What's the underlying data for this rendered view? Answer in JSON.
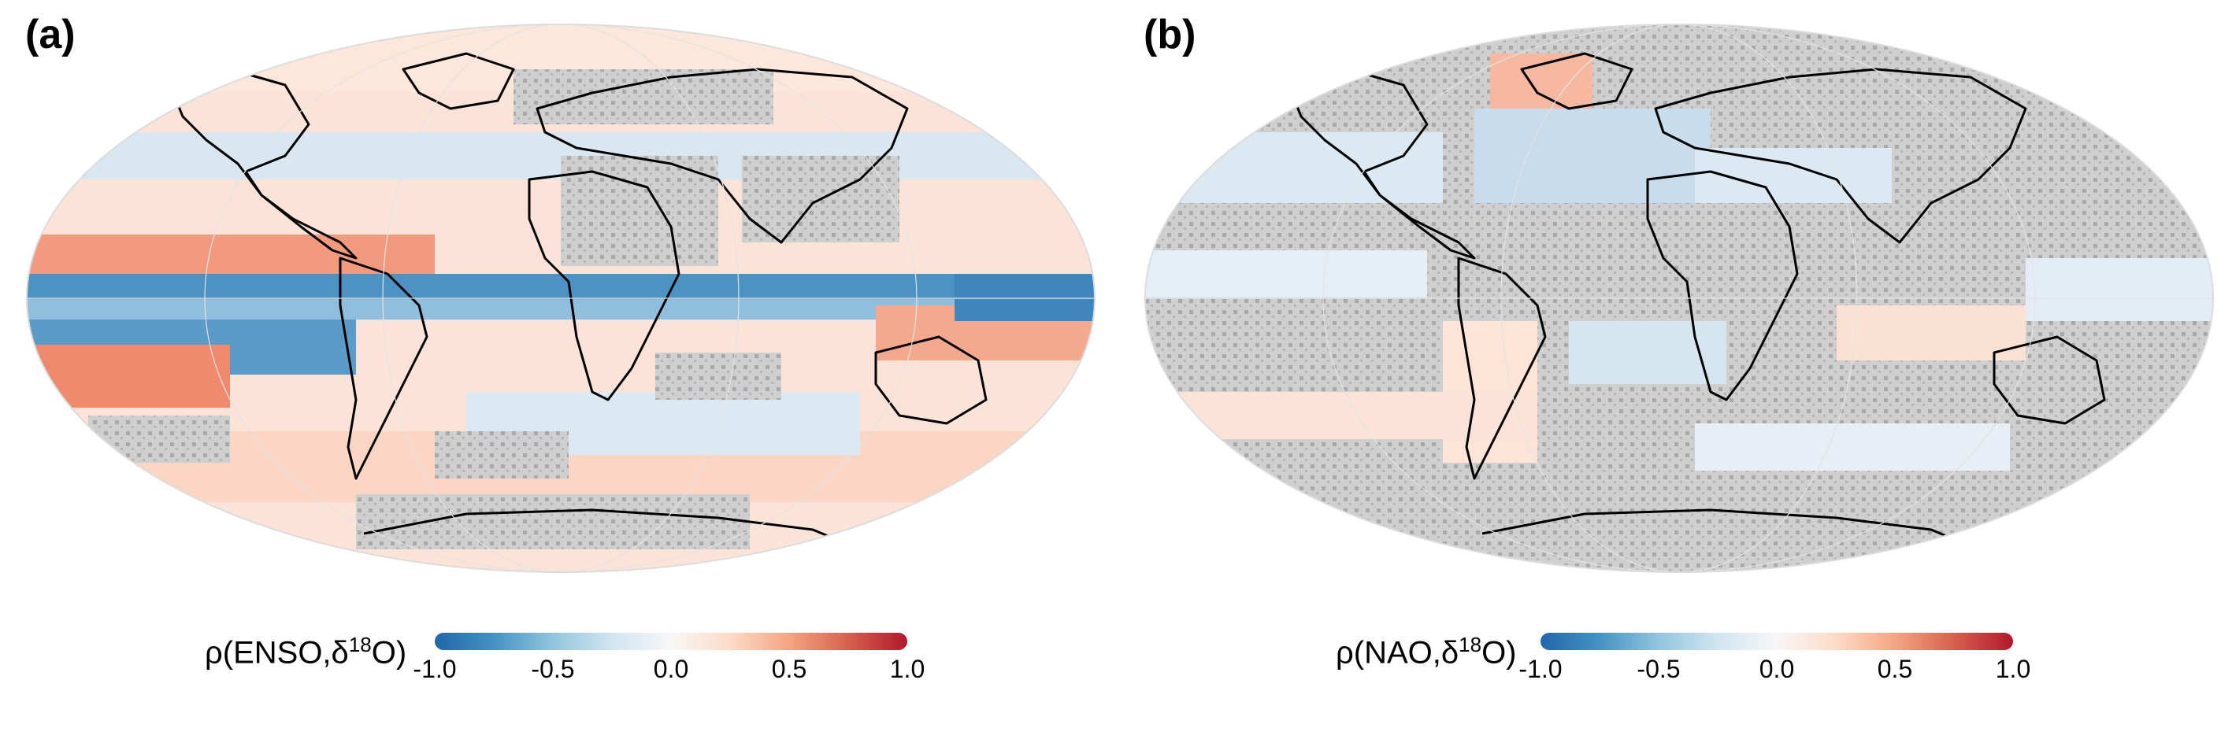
{
  "panels": [
    {
      "label": "(a)",
      "colorbar_title": {
        "prefix": "ρ(ENSO,δ",
        "sup": "18",
        "suffix": "O)"
      },
      "colorbar_ticks": [
        "-1.0",
        "-0.5",
        "0.0",
        "0.5",
        "1.0"
      ]
    },
    {
      "label": "(b)",
      "colorbar_title": {
        "prefix": "ρ(NAO,δ",
        "sup": "18",
        "suffix": "O)"
      },
      "colorbar_ticks": [
        "-1.0",
        "-0.5",
        "0.0",
        "0.5",
        "1.0"
      ]
    }
  ],
  "colors": {
    "negative": "#2166ac",
    "neutral": "#f7f7f7",
    "positive": "#b2182b",
    "stipple_mask": "#bdbdbd",
    "coastline": "#000000"
  }
}
